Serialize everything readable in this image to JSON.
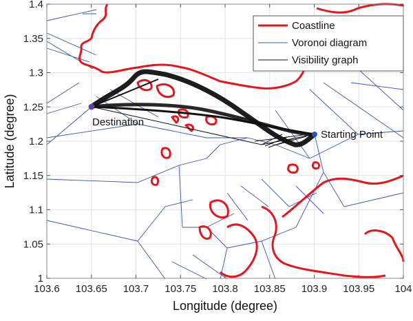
{
  "chart_data": {
    "type": "line",
    "title": "",
    "xlabel": "Longitude (degree)",
    "ylabel": "Latitude (degree)",
    "xlim": [
      103.6,
      104.0
    ],
    "ylim": [
      1.0,
      1.4
    ],
    "xticks": [
      "103.6",
      "103.65",
      "103.7",
      "103.75",
      "103.8",
      "103.85",
      "103.9",
      "103.95",
      "104"
    ],
    "yticks": [
      "1",
      "1.05",
      "1.1",
      "1.15",
      "1.2",
      "1.25",
      "1.3",
      "1.35",
      "1.4"
    ],
    "grid": true,
    "legend_position": "upper right",
    "legend": [
      {
        "name": "Coastline",
        "color": "#e8141c",
        "width": 3
      },
      {
        "name": "Voronoi diagram",
        "color": "#3f51b5",
        "width": 1
      },
      {
        "name": "Visibility graph",
        "color": "#111111",
        "width": 1
      }
    ],
    "points": [
      {
        "name": "Destination",
        "x": 103.65,
        "y": 1.25,
        "color": "#3b4fb8"
      },
      {
        "name": "Starting Point",
        "x": 103.9,
        "y": 1.21,
        "color": "#2a55b5"
      }
    ],
    "series": [
      {
        "name": "Visibility graph path bundle (upper)",
        "x": [
          103.9,
          103.86,
          103.82,
          103.78,
          103.72,
          103.7,
          103.65
        ],
        "y": [
          1.21,
          1.22,
          1.25,
          1.28,
          1.3,
          1.3,
          1.25
        ]
      },
      {
        "name": "Visibility graph path bundle (lower)",
        "x": [
          103.9,
          103.85,
          103.8,
          103.75,
          103.7,
          103.65
        ],
        "y": [
          1.21,
          1.215,
          1.235,
          1.245,
          1.25,
          1.25
        ]
      }
    ]
  },
  "annotations": {
    "destination": "Destination",
    "start": "Starting Point"
  }
}
